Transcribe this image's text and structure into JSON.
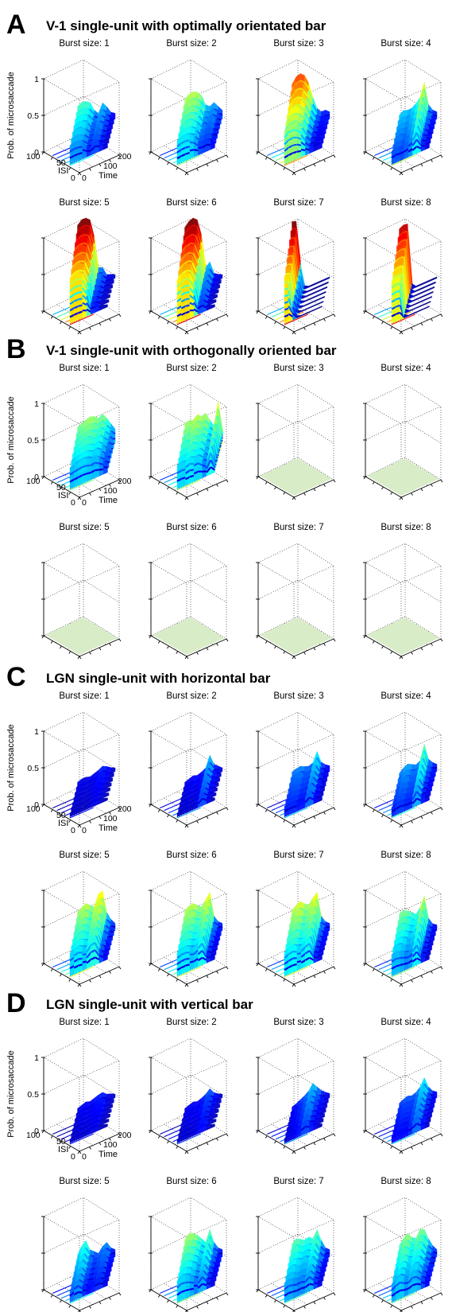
{
  "chart_data": [
    {
      "type": "surface3d",
      "panel_label": "A",
      "title": "V-1 single-unit with optimally orientated bar",
      "zlabel": "Prob. of microsaccade",
      "xlabel": "ISI",
      "ylabel": "Time",
      "zlim": [
        0,
        1
      ],
      "z_ticks": [
        "0",
        "0.5",
        "1"
      ],
      "isi_ticks": [
        "100",
        "50",
        "0"
      ],
      "time_ticks": [
        "0",
        "100",
        "200"
      ],
      "subplots": [
        {
          "title": "Burst size: 1",
          "peak": 0.42,
          "profile": [
            0.4,
            0.43,
            0.42,
            0.38,
            0.25,
            0.18,
            0.3,
            0.22,
            0.12,
            0.08
          ],
          "empty": false
        },
        {
          "title": "Burst size: 2",
          "peak": 0.55,
          "profile": [
            0.5,
            0.54,
            0.55,
            0.52,
            0.45,
            0.3,
            0.25,
            0.28,
            0.2,
            0.12
          ],
          "empty": false
        },
        {
          "title": "Burst size: 3",
          "peak": 0.8,
          "profile": [
            0.7,
            0.78,
            0.8,
            0.75,
            0.62,
            0.4,
            0.22,
            0.15,
            0.15,
            0.1
          ],
          "empty": false
        },
        {
          "title": "Burst size: 4",
          "peak": 0.6,
          "profile": [
            0.28,
            0.32,
            0.3,
            0.3,
            0.34,
            0.4,
            0.58,
            0.25,
            0.15,
            0.1
          ],
          "empty": false
        },
        {
          "title": "Burst size: 5",
          "peak": 1.0,
          "profile": [
            0.95,
            1.0,
            1.0,
            0.95,
            0.7,
            0.25,
            0.22,
            0.1,
            0.08,
            0.05
          ],
          "empty": false
        },
        {
          "title": "Burst size: 6",
          "peak": 1.0,
          "profile": [
            0.92,
            0.98,
            1.0,
            0.95,
            0.72,
            0.25,
            0.3,
            0.12,
            0.08,
            0.05
          ],
          "empty": false
        },
        {
          "title": "Burst size: 7",
          "peak": 1.0,
          "profile": [
            1.0,
            0.98,
            0.4,
            0.05,
            0.02,
            0.02,
            0.02,
            0.02,
            0.02,
            0.02
          ],
          "empty": false
        },
        {
          "title": "Burst size: 8",
          "peak": 0.95,
          "profile": [
            0.9,
            0.93,
            0.92,
            0.08,
            0.02,
            0.02,
            0.02,
            0.02,
            0.02,
            0.02
          ],
          "empty": false
        }
      ]
    },
    {
      "type": "surface3d",
      "panel_label": "B",
      "title": "V-1 single-unit with orthogonally oriented bar",
      "zlabel": "Prob. of microsaccade",
      "xlabel": "ISI",
      "ylabel": "Time",
      "zlim": [
        0,
        1
      ],
      "z_ticks": [
        "0",
        "0.5",
        "1"
      ],
      "isi_ticks": [
        "100",
        "50",
        "0"
      ],
      "time_ticks": [
        "0",
        "100",
        "200"
      ],
      "subplots": [
        {
          "title": "Burst size: 1",
          "peak": 0.55,
          "profile": [
            0.45,
            0.48,
            0.5,
            0.52,
            0.5,
            0.45,
            0.48,
            0.4,
            0.3,
            0.2
          ],
          "empty": false
        },
        {
          "title": "Burst size: 2",
          "peak": 0.6,
          "profile": [
            0.5,
            0.52,
            0.5,
            0.55,
            0.5,
            0.52,
            0.4,
            0.3,
            0.6,
            0.2
          ],
          "empty": false
        },
        {
          "title": "Burst size: 3",
          "peak": 0,
          "profile": [],
          "empty": true
        },
        {
          "title": "Burst size: 4",
          "peak": 0,
          "profile": [],
          "empty": true
        },
        {
          "title": "Burst size: 5",
          "peak": 0,
          "profile": [],
          "empty": true
        },
        {
          "title": "Burst size: 6",
          "peak": 0,
          "profile": [],
          "empty": true
        },
        {
          "title": "Burst size: 7",
          "peak": 0,
          "profile": [],
          "empty": true
        },
        {
          "title": "Burst size: 8",
          "peak": 0,
          "profile": [],
          "empty": true
        }
      ]
    },
    {
      "type": "surface3d",
      "panel_label": "C",
      "title": "LGN single-unit with horizontal bar",
      "zlabel": "Prob. of microsaccade",
      "xlabel": "ISI",
      "ylabel": "Time",
      "zlim": [
        0,
        1
      ],
      "z_ticks": [
        "0",
        "0.5",
        "1"
      ],
      "isi_ticks": [
        "100",
        "50",
        "0"
      ],
      "time_ticks": [
        "0",
        "100",
        "200"
      ],
      "subplots": [
        {
          "title": "Burst size: 1",
          "peak": 0.15,
          "profile": [
            0.08,
            0.1,
            0.1,
            0.08,
            0.1,
            0.12,
            0.15,
            0.12,
            0.08,
            0.05
          ],
          "empty": false
        },
        {
          "title": "Burst size: 2",
          "peak": 0.3,
          "profile": [
            0.08,
            0.1,
            0.12,
            0.1,
            0.12,
            0.15,
            0.3,
            0.15,
            0.1,
            0.05
          ],
          "empty": false
        },
        {
          "title": "Burst size: 3",
          "peak": 0.35,
          "profile": [
            0.22,
            0.24,
            0.25,
            0.22,
            0.2,
            0.22,
            0.35,
            0.18,
            0.12,
            0.08
          ],
          "empty": false
        },
        {
          "title": "Burst size: 4",
          "peak": 0.45,
          "profile": [
            0.2,
            0.25,
            0.28,
            0.25,
            0.22,
            0.25,
            0.45,
            0.22,
            0.15,
            0.1
          ],
          "empty": false
        },
        {
          "title": "Burst size: 5",
          "peak": 0.65,
          "profile": [
            0.48,
            0.52,
            0.55,
            0.5,
            0.45,
            0.6,
            0.62,
            0.3,
            0.18,
            0.1
          ],
          "empty": false
        },
        {
          "title": "Burst size: 6",
          "peak": 0.62,
          "profile": [
            0.5,
            0.54,
            0.55,
            0.5,
            0.45,
            0.52,
            0.6,
            0.25,
            0.15,
            0.1
          ],
          "empty": false
        },
        {
          "title": "Burst size: 7",
          "peak": 0.62,
          "profile": [
            0.5,
            0.55,
            0.58,
            0.52,
            0.48,
            0.55,
            0.6,
            0.25,
            0.15,
            0.1
          ],
          "empty": false
        },
        {
          "title": "Burst size: 8",
          "peak": 0.55,
          "profile": [
            0.45,
            0.48,
            0.45,
            0.4,
            0.35,
            0.42,
            0.55,
            0.22,
            0.12,
            0.08
          ],
          "empty": false
        }
      ]
    },
    {
      "type": "surface3d",
      "panel_label": "D",
      "title": "LGN single-unit with vertical bar",
      "zlabel": "Prob. of microsaccade",
      "xlabel": "ISI",
      "ylabel": "Time",
      "zlim": [
        0,
        1
      ],
      "z_ticks": [
        "0",
        "0.5",
        "1"
      ],
      "isi_ticks": [
        "100",
        "50",
        "0"
      ],
      "time_ticks": [
        "0",
        "100",
        "200"
      ],
      "subplots": [
        {
          "title": "Burst size: 1",
          "peak": 0.15,
          "profile": [
            0.08,
            0.1,
            0.12,
            0.1,
            0.12,
            0.14,
            0.15,
            0.1,
            0.08,
            0.05
          ],
          "empty": false
        },
        {
          "title": "Burst size: 2",
          "peak": 0.2,
          "profile": [
            0.08,
            0.1,
            0.12,
            0.1,
            0.12,
            0.15,
            0.2,
            0.12,
            0.08,
            0.05
          ],
          "empty": false
        },
        {
          "title": "Burst size: 3",
          "peak": 0.3,
          "profile": [
            0.1,
            0.12,
            0.15,
            0.18,
            0.22,
            0.3,
            0.22,
            0.15,
            0.1,
            0.06
          ],
          "empty": false
        },
        {
          "title": "Burst size: 4",
          "peak": 0.35,
          "profile": [
            0.15,
            0.18,
            0.2,
            0.18,
            0.2,
            0.25,
            0.35,
            0.2,
            0.12,
            0.08
          ],
          "empty": false
        },
        {
          "title": "Burst size: 5",
          "peak": 0.4,
          "profile": [
            0.25,
            0.35,
            0.4,
            0.25,
            0.2,
            0.15,
            0.22,
            0.25,
            0.15,
            0.1
          ],
          "empty": false
        },
        {
          "title": "Burst size: 6",
          "peak": 0.55,
          "profile": [
            0.45,
            0.52,
            0.5,
            0.45,
            0.38,
            0.3,
            0.45,
            0.25,
            0.15,
            0.1
          ],
          "empty": false
        },
        {
          "title": "Burst size: 7",
          "peak": 0.48,
          "profile": [
            0.4,
            0.45,
            0.42,
            0.38,
            0.4,
            0.35,
            0.45,
            0.28,
            0.15,
            0.1
          ],
          "empty": false
        },
        {
          "title": "Burst size: 8",
          "peak": 0.52,
          "profile": [
            0.38,
            0.45,
            0.5,
            0.42,
            0.38,
            0.48,
            0.45,
            0.3,
            0.18,
            0.1
          ],
          "empty": false
        }
      ]
    }
  ]
}
